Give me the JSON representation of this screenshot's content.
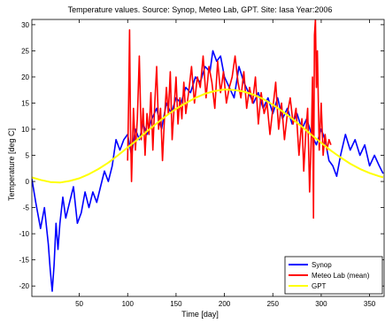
{
  "chart_data": {
    "type": "line",
    "title": "Temperature values. Source: Synop, Meteo Lab, GPT. Site: Iasa Year:2006",
    "xlabel": "Time [day]",
    "ylabel": "Temperature [deg C]",
    "xlim": [
      1,
      365
    ],
    "ylim": [
      -22,
      31
    ],
    "x_ticks": [
      50,
      100,
      150,
      200,
      250,
      300,
      350
    ],
    "y_ticks": [
      -20,
      -15,
      -10,
      -5,
      0,
      5,
      10,
      15,
      20,
      25,
      30
    ],
    "grid": false,
    "legend_position": "bottom-right",
    "series": [
      {
        "name": "Synop",
        "color": "#0000ff",
        "x": [
          1,
          5,
          10,
          14,
          18,
          20,
          22,
          24,
          26,
          28,
          30,
          33,
          36,
          40,
          44,
          48,
          52,
          56,
          60,
          64,
          68,
          72,
          76,
          80,
          84,
          88,
          92,
          96,
          100,
          104,
          108,
          112,
          116,
          120,
          125,
          130,
          135,
          140,
          145,
          150,
          155,
          160,
          165,
          170,
          175,
          180,
          185,
          188,
          192,
          196,
          200,
          205,
          210,
          215,
          220,
          225,
          230,
          235,
          240,
          245,
          250,
          255,
          260,
          265,
          270,
          275,
          280,
          285,
          290,
          295,
          300,
          304,
          308,
          312,
          316,
          320,
          325,
          330,
          335,
          340,
          345,
          350,
          355,
          360,
          364
        ],
        "y": [
          0.5,
          -4,
          -9,
          -5,
          -12,
          -17,
          -21,
          -16,
          -8,
          -13,
          -8,
          -3,
          -7,
          -4,
          -1,
          -8,
          -6,
          -2,
          -5,
          -2,
          -4,
          -1,
          2,
          0,
          3,
          8,
          6,
          8,
          9,
          5,
          10,
          8,
          11,
          9,
          12,
          14,
          10,
          15,
          13,
          16,
          15,
          18,
          17,
          20,
          19,
          22,
          21,
          25,
          23,
          24,
          20,
          18,
          16,
          22,
          19,
          17,
          15,
          17,
          14,
          16,
          13,
          16,
          12,
          14,
          11,
          13,
          10,
          12,
          9,
          7,
          10,
          8,
          4,
          3,
          1,
          5,
          9,
          6,
          8,
          5,
          7,
          3,
          5,
          3,
          1.5
        ]
      },
      {
        "name": "Meteo Lab (mean)",
        "color": "#ff0000",
        "x": [
          100,
          101,
          102,
          103,
          104,
          106,
          108,
          110,
          112,
          114,
          116,
          118,
          120,
          122,
          124,
          126,
          128,
          130,
          132,
          134,
          136,
          138,
          140,
          142,
          144,
          146,
          148,
          150,
          152,
          154,
          156,
          158,
          160,
          163,
          166,
          169,
          172,
          175,
          178,
          181,
          184,
          187,
          190,
          193,
          196,
          199,
          202,
          205,
          208,
          211,
          214,
          217,
          220,
          223,
          226,
          229,
          232,
          235,
          238,
          241,
          244,
          247,
          250,
          253,
          256,
          259,
          262,
          265,
          268,
          271,
          274,
          277,
          280,
          282,
          284,
          286,
          288,
          290,
          291,
          292,
          293,
          294,
          295,
          296,
          298,
          300,
          302,
          304,
          306,
          308,
          310
        ],
        "y": [
          4,
          15,
          29,
          10,
          0,
          14,
          6,
          12,
          24,
          8,
          14,
          5,
          13,
          9,
          17,
          6,
          15,
          22,
          10,
          14,
          4,
          12,
          18,
          13,
          21,
          8,
          14,
          20,
          11,
          16,
          12,
          19,
          13,
          17,
          22,
          15,
          20,
          18,
          24,
          16,
          22,
          19,
          14,
          23,
          17,
          21,
          15,
          18,
          20,
          24,
          19,
          16,
          21,
          14,
          18,
          15,
          20,
          11,
          17,
          13,
          15,
          9,
          14,
          19,
          10,
          15,
          8,
          13,
          16,
          11,
          14,
          5,
          12,
          2,
          9,
          14,
          -2,
          10,
          20,
          -7,
          28,
          31,
          18,
          25,
          6,
          15,
          5,
          9,
          6,
          8,
          7
        ]
      },
      {
        "name": "GPT",
        "color": "#ffff00",
        "x": [
          1,
          10,
          20,
          30,
          40,
          50,
          60,
          70,
          80,
          90,
          100,
          110,
          120,
          130,
          140,
          150,
          160,
          170,
          180,
          190,
          200,
          210,
          220,
          230,
          240,
          250,
          260,
          270,
          280,
          290,
          300,
          310,
          320,
          330,
          340,
          350,
          360,
          364
        ],
        "y": [
          0.8,
          0.3,
          -0.1,
          -0.2,
          0.1,
          0.6,
          1.4,
          2.4,
          3.6,
          5.0,
          6.5,
          8.0,
          9.6,
          11.1,
          12.6,
          13.9,
          15.0,
          16.0,
          16.8,
          17.3,
          17.6,
          17.5,
          17.2,
          16.6,
          15.8,
          14.7,
          13.4,
          12.0,
          10.5,
          8.9,
          7.4,
          5.9,
          4.6,
          3.4,
          2.4,
          1.6,
          1.0,
          0.8
        ]
      }
    ]
  }
}
